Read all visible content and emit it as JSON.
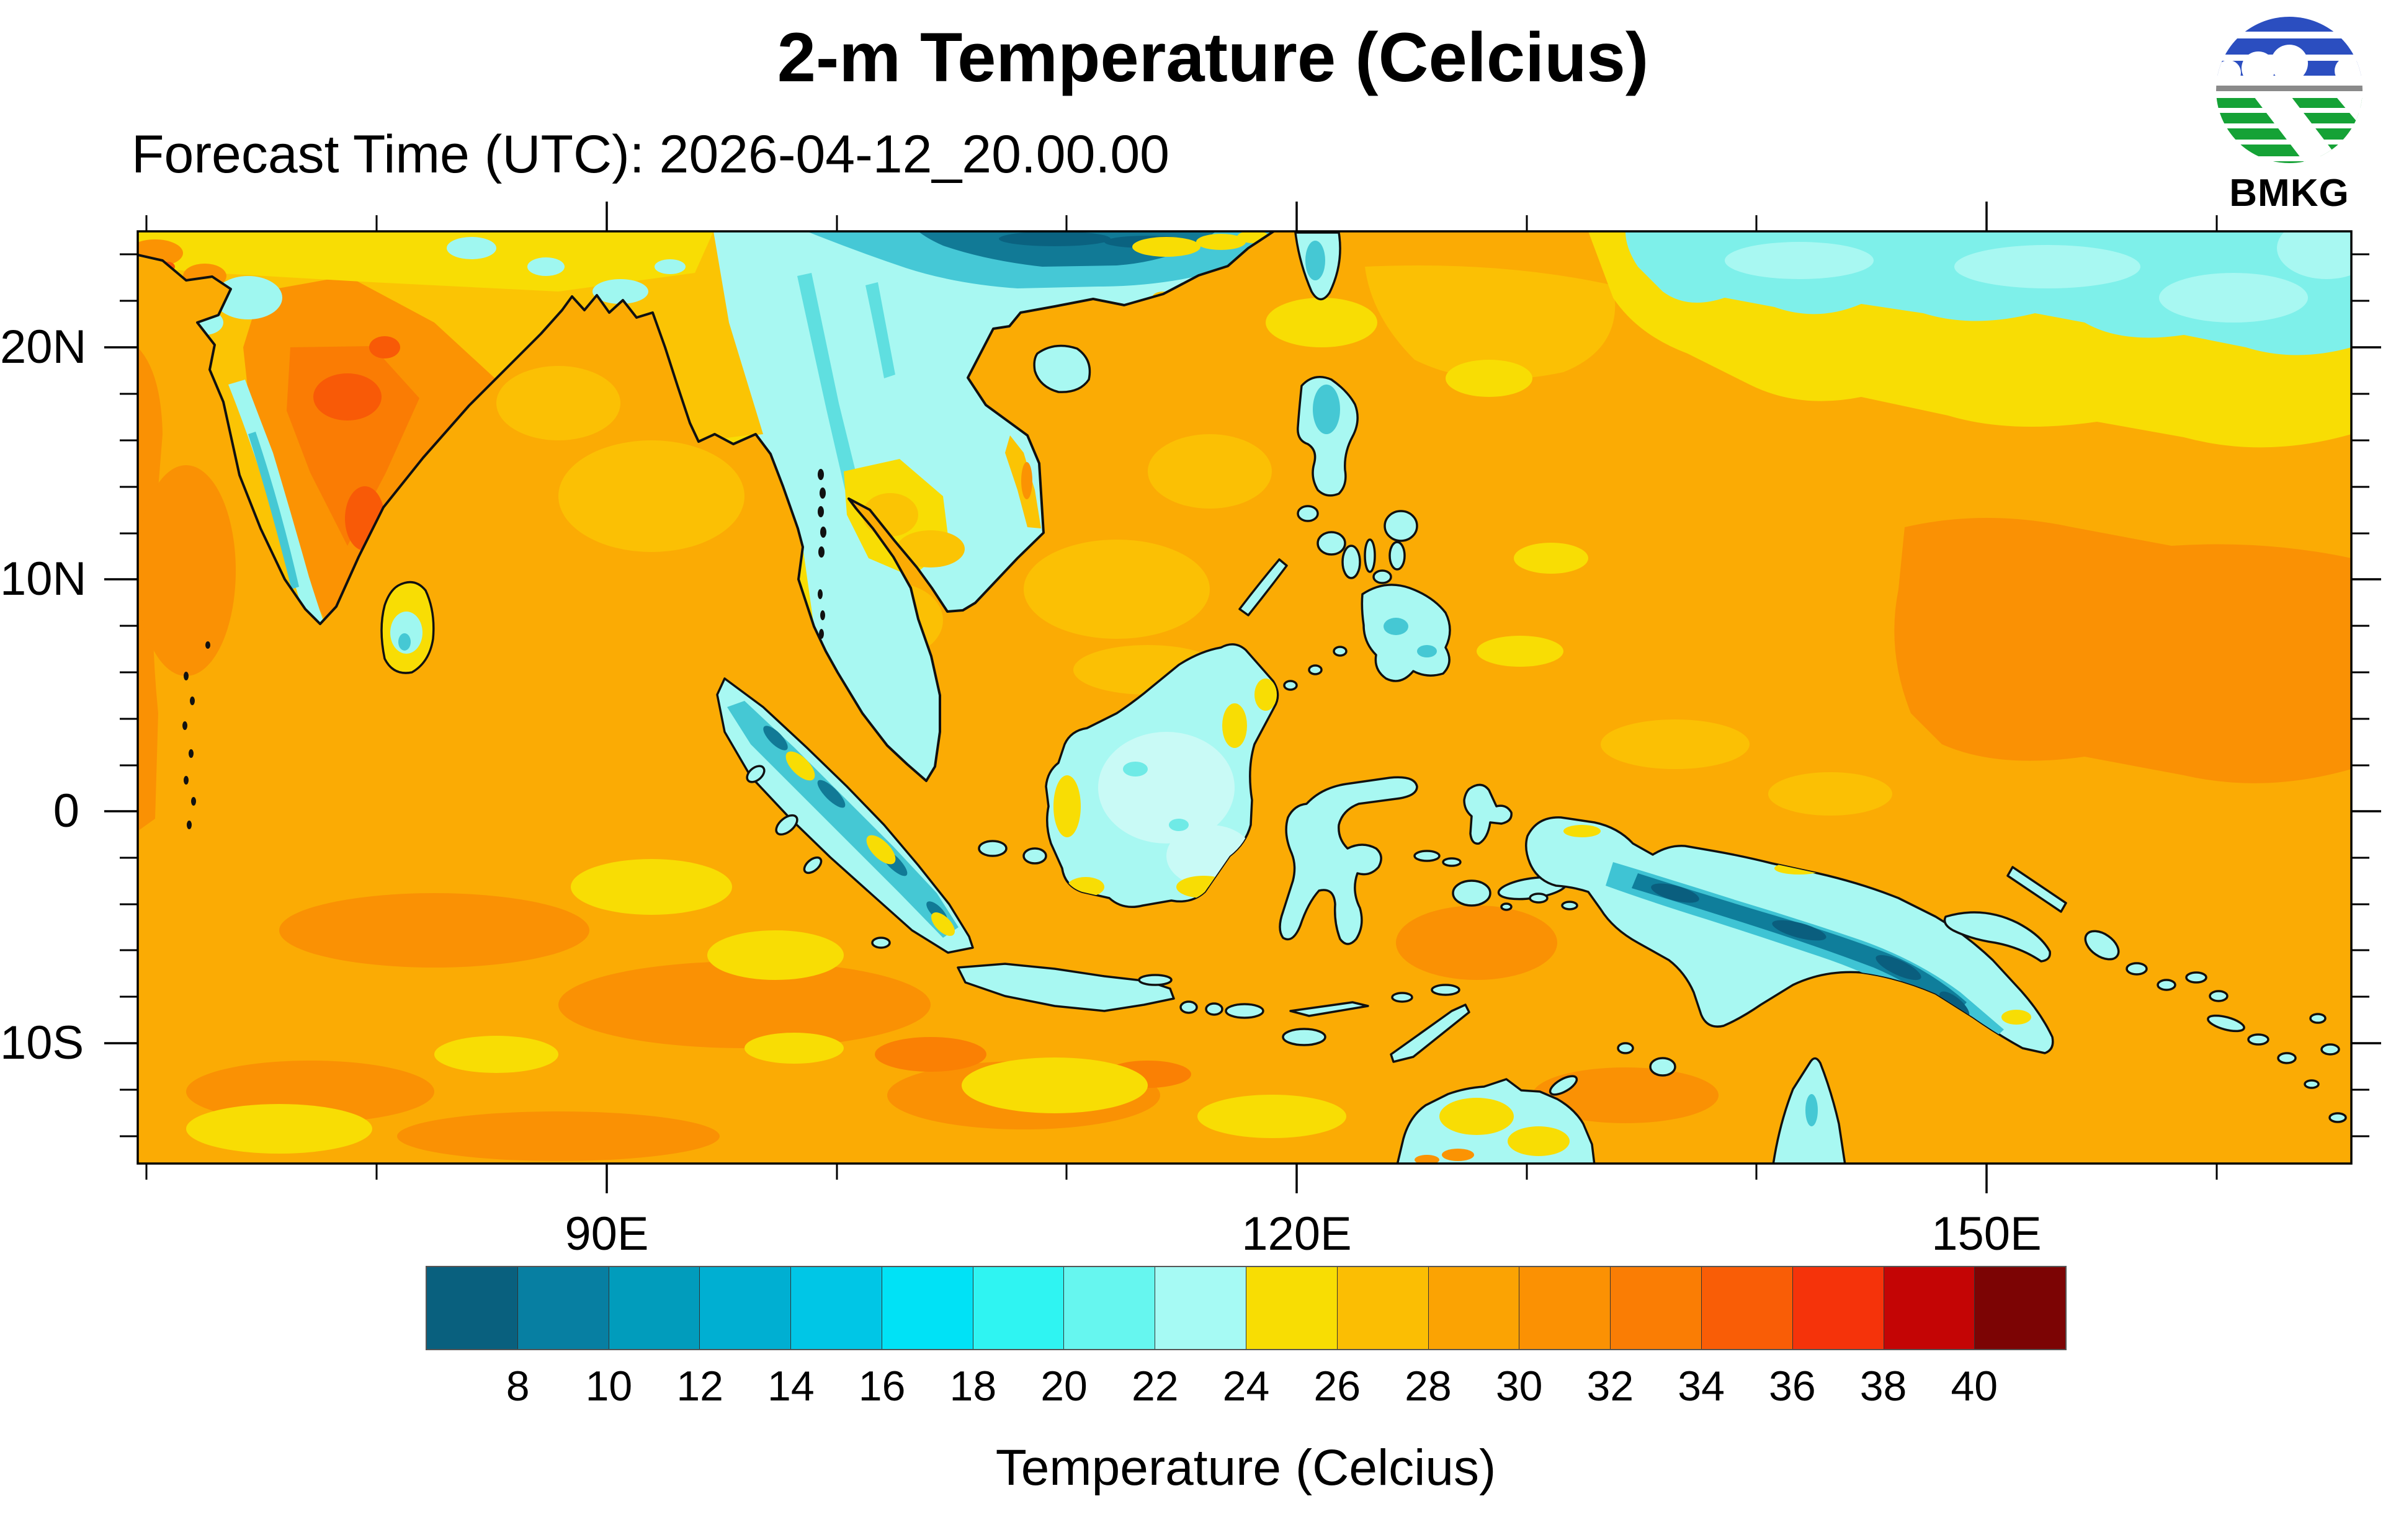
{
  "title": "2-m Temperature (Celcius)",
  "subtitle": "Forecast Time (UTC): 2026-04-12_20.00.00",
  "logo": {
    "text": "BMKG",
    "blue": "#2B4EC0",
    "green": "#15A236",
    "gray": "#8A8A8A"
  },
  "map": {
    "lat_labels": [
      "20N",
      "10N",
      "0",
      "10S"
    ],
    "lon_labels": [
      "90E",
      "120E",
      "150E"
    ]
  },
  "colorbar": {
    "title": "Temperature (Celcius)",
    "labels": [
      "8",
      "10",
      "12",
      "14",
      "16",
      "18",
      "20",
      "22",
      "24",
      "26",
      "28",
      "30",
      "32",
      "34",
      "36",
      "38",
      "40"
    ],
    "colors": [
      "#09607E",
      "#077FA2",
      "#019CBC",
      "#00AFD2",
      "#00C6E6",
      "#00E2F6",
      "#2FF4F2",
      "#66F6EF",
      "#A6FAF4",
      "#F8DD03",
      "#FBBE03",
      "#FBA303",
      "#FB9103",
      "#FA7D04",
      "#F95D06",
      "#F5330A",
      "#C40505",
      "#7C0404"
    ]
  },
  "chart_data": {
    "type": "heatmap",
    "subtype": "filled-contour-weather-map",
    "title": "2-m Temperature (Celcius)",
    "forecast_time_utc": "2026-04-12_20.00.00",
    "agency": "BMKG",
    "x_axis": {
      "tick_labels": [
        "90E",
        "120E",
        "150E"
      ],
      "approx_range_deg_east": [
        70,
        165
      ],
      "minor_tick_step_deg": 10
    },
    "y_axis": {
      "tick_labels": [
        "20N",
        "10N",
        "0",
        "10S"
      ],
      "approx_range_deg_lat": [
        -15,
        25
      ],
      "minor_tick_step_deg": 2
    },
    "colorbar": {
      "label": "Temperature (Celcius)",
      "units": "Celsius",
      "levels": [
        8,
        10,
        12,
        14,
        16,
        18,
        20,
        22,
        24,
        26,
        28,
        30,
        32,
        34,
        36,
        38,
        40
      ],
      "colors": [
        "#09607E",
        "#077FA2",
        "#019CBC",
        "#00AFD2",
        "#00C6E6",
        "#00E2F6",
        "#2FF4F2",
        "#66F6EF",
        "#A6FAF4",
        "#F8DD03",
        "#FBBE03",
        "#FBA303",
        "#FB9103",
        "#FA7D04",
        "#F95D06",
        "#F5330A",
        "#C40505",
        "#7C0404"
      ]
    },
    "legend_position": "bottom",
    "grid": false,
    "notes_visible_pattern": "Sea mostly 26-30C (orange); land over Indochina, Indonesia, Philippines, New Guinea 20-24C (cyan) with mountain cores 8-16C (teal); India interior 28-36C (orange/red); NW Pacific band above 22N at 20-24C (cyan)"
  }
}
